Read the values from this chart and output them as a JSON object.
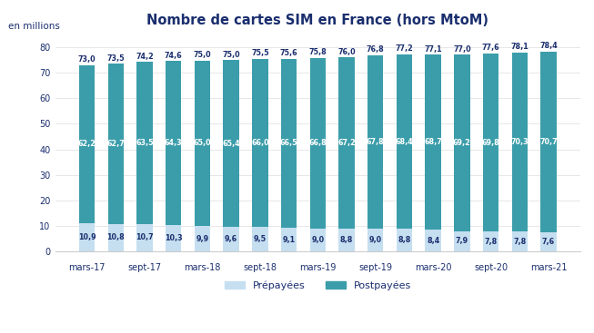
{
  "title": "Nombre de cartes SIM en France (hors MtoM)",
  "ylabel": "en millions",
  "prepayees": [
    10.9,
    10.8,
    10.7,
    10.3,
    9.9,
    9.6,
    9.5,
    9.1,
    9.0,
    8.8,
    9.0,
    8.8,
    8.4,
    7.9,
    7.8,
    7.8,
    7.6
  ],
  "postpayees": [
    62.2,
    62.7,
    63.5,
    64.3,
    65.0,
    65.4,
    66.0,
    66.5,
    66.8,
    67.2,
    67.8,
    68.4,
    68.7,
    69.2,
    69.8,
    70.3,
    70.7
  ],
  "totals": [
    73.0,
    73.5,
    74.2,
    74.6,
    75.0,
    75.0,
    75.5,
    75.6,
    75.8,
    76.0,
    76.8,
    77.2,
    77.1,
    77.0,
    77.6,
    78.1,
    78.4
  ],
  "x_tick_positions": [
    0,
    2,
    4,
    6,
    8,
    10,
    12,
    14,
    16
  ],
  "x_tick_labels": [
    "mars-17",
    "sept-17",
    "mars-18",
    "sept-18",
    "mars-19",
    "sept-19",
    "mars-20",
    "sept-20",
    "mars-21"
  ],
  "color_prepayees": "#c5dff0",
  "color_postpayees": "#3b9daa",
  "title_color": "#1a2e6e",
  "label_color": "#1a2e6e",
  "ylabel_color": "#1a2e6e",
  "ylim": [
    0,
    85
  ],
  "yticks": [
    0,
    10,
    20,
    30,
    40,
    50,
    60,
    70,
    80
  ],
  "legend_prepayees": "Prépayées",
  "legend_postpayees": "Postpayées",
  "bar_width": 0.55
}
